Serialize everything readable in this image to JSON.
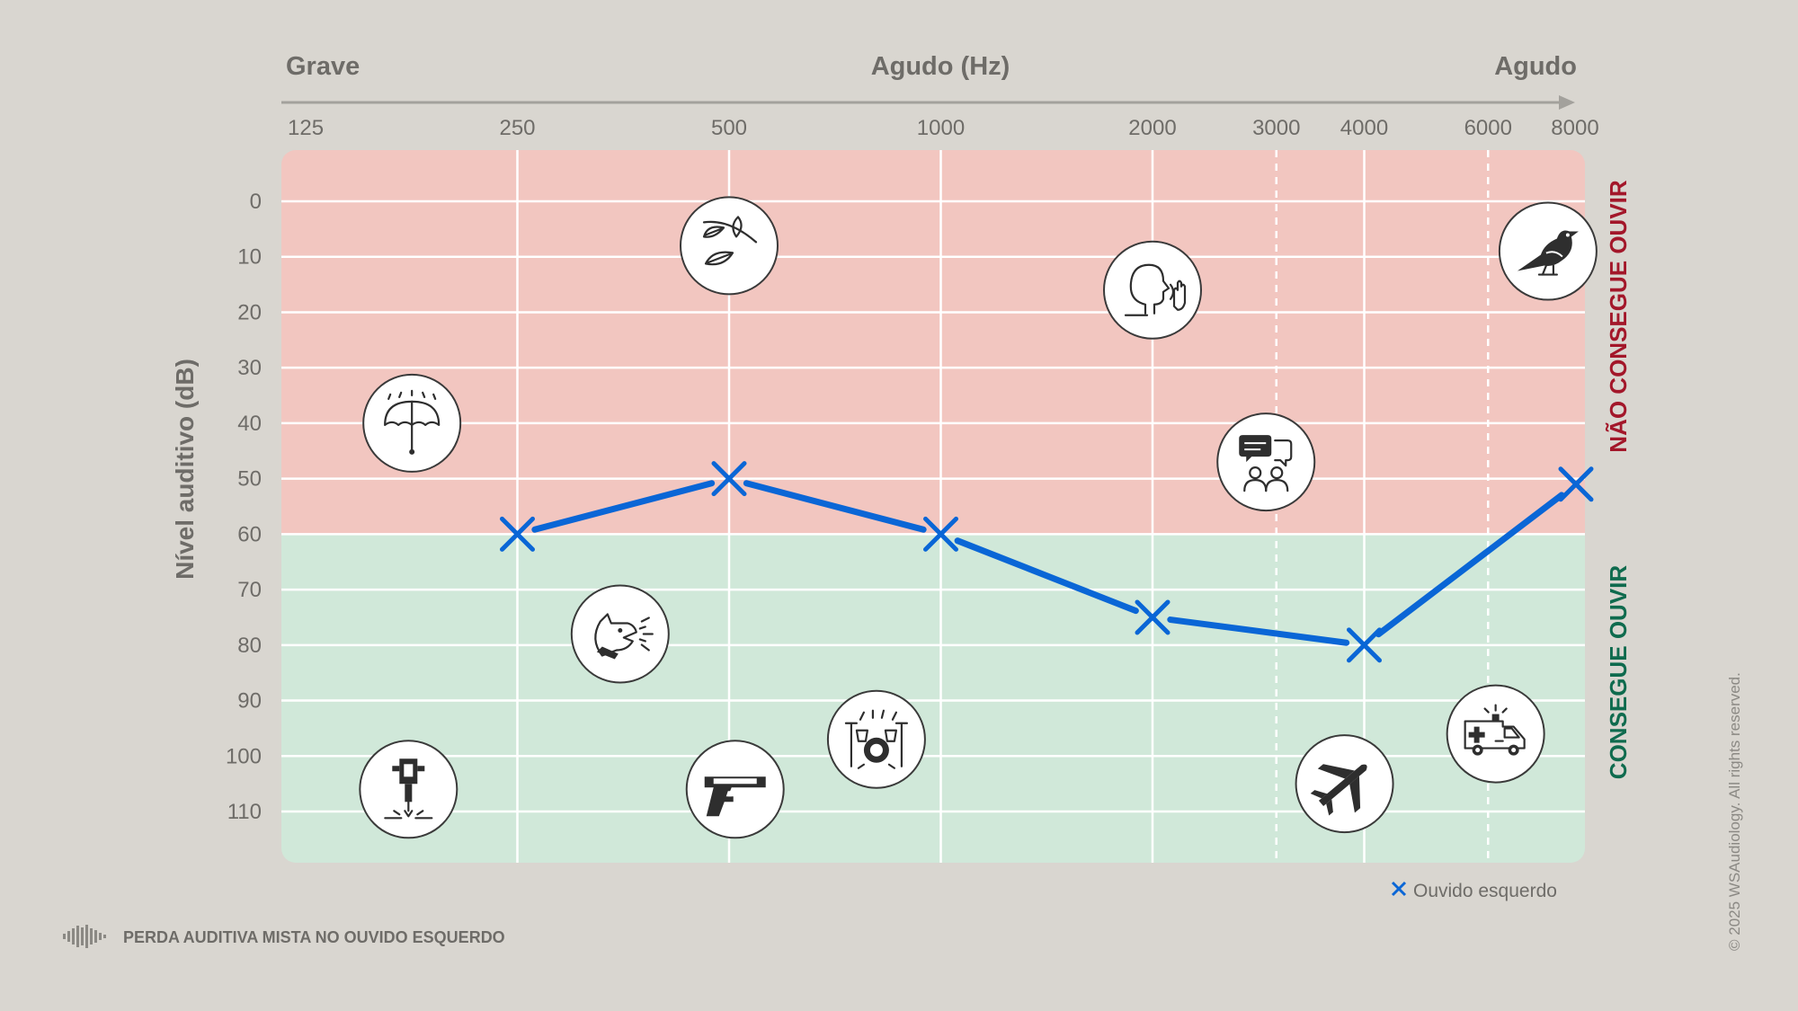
{
  "chart_data": {
    "type": "line",
    "title": "",
    "xlabel": "Agudo (Hz)",
    "x_axis_left_label": "Grave",
    "x_axis_right_label": "Agudo",
    "ylabel": "Nível auditivo (dB)",
    "x_scale": "log",
    "x_ticks": [
      125,
      250,
      500,
      1000,
      2000,
      3000,
      4000,
      6000,
      8000
    ],
    "x_ticks_dashed": [
      3000,
      6000
    ],
    "y_ticks": [
      0,
      10,
      20,
      30,
      40,
      50,
      60,
      70,
      80,
      90,
      100,
      110
    ],
    "ylim": [
      -9,
      119
    ],
    "y_inverted": true,
    "threshold_db": 60,
    "zones": {
      "above_threshold_label": "NÃO CONSEGUE OUVIR",
      "below_threshold_label": "CONSEGUE OUVIR",
      "above_color": "#f2c6c0",
      "below_color": "#d0e8d9"
    },
    "series": [
      {
        "name": "Ouvido esquerdo",
        "marker": "x",
        "color": "#0a66d6",
        "points": [
          {
            "x": 250,
            "y": 60
          },
          {
            "x": 500,
            "y": 50
          },
          {
            "x": 1000,
            "y": 60
          },
          {
            "x": 2000,
            "y": 75
          },
          {
            "x": 4000,
            "y": 80
          },
          {
            "x": 8000,
            "y": 51
          }
        ]
      }
    ],
    "legend_position": "bottom-right",
    "grid": true,
    "icons": [
      {
        "name": "umbrella-rain-icon",
        "x": 177,
        "y": 40
      },
      {
        "name": "leaves-rustling-icon",
        "x": 500,
        "y": 8
      },
      {
        "name": "whisper-icon",
        "x": 2000,
        "y": 16
      },
      {
        "name": "bird-icon",
        "x": 7300,
        "y": 9
      },
      {
        "name": "conversation-icon",
        "x": 2900,
        "y": 47
      },
      {
        "name": "barking-dog-icon",
        "x": 350,
        "y": 78
      },
      {
        "name": "drum-kit-icon",
        "x": 810,
        "y": 97
      },
      {
        "name": "pistol-icon",
        "x": 510,
        "y": 106
      },
      {
        "name": "jackhammer-icon",
        "x": 175,
        "y": 106
      },
      {
        "name": "airplane-icon",
        "x": 3750,
        "y": 105
      },
      {
        "name": "ambulance-icon",
        "x": 6150,
        "y": 96
      }
    ]
  },
  "caption": "PERDA AUDITIVA MISTA NO OUVIDO ESQUERDO",
  "copyright": "© 2025 WSAudiology. All rights reserved.",
  "colors": {
    "background": "#d9d6d0",
    "text": "#6e6c68",
    "grid": "#ffffff",
    "accent": "#0a66d6"
  }
}
